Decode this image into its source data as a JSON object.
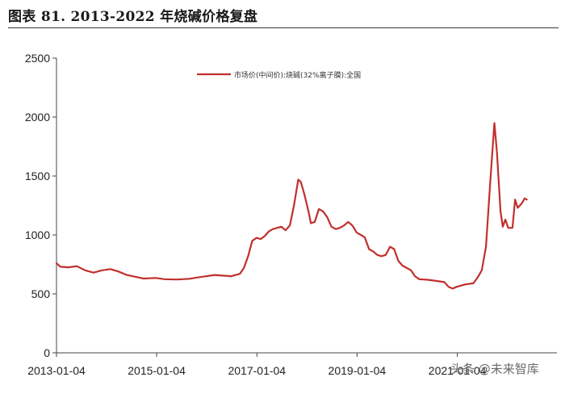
{
  "figure": {
    "title": "图表 81. 2013-2022 年烧碱价格复盘"
  },
  "watermark": {
    "source": "头条 @未来智库"
  },
  "chart_data": {
    "type": "line",
    "title": "",
    "xlabel": "",
    "ylabel": "",
    "xlim": [
      "2013-01-04",
      "2022-12-31"
    ],
    "ylim": [
      0,
      2500
    ],
    "yticks": [
      0,
      500,
      1000,
      1500,
      2000,
      2500
    ],
    "xticks": [
      "2013-01-04",
      "2015-01-04",
      "2017-01-04",
      "2019-01-04",
      "2021-01-04"
    ],
    "grid": false,
    "legend_position": "top-center",
    "series": [
      {
        "name": "市场价(中间价):烧碱(32%离子膜):全国",
        "color": "#c0302c",
        "points": [
          [
            "2013-01-04",
            760
          ],
          [
            "2013-02-01",
            730
          ],
          [
            "2013-04-01",
            725
          ],
          [
            "2013-06-01",
            735
          ],
          [
            "2013-08-01",
            700
          ],
          [
            "2013-10-01",
            680
          ],
          [
            "2013-12-01",
            700
          ],
          [
            "2014-02-01",
            710
          ],
          [
            "2014-04-01",
            690
          ],
          [
            "2014-06-01",
            660
          ],
          [
            "2014-08-01",
            645
          ],
          [
            "2014-10-01",
            630
          ],
          [
            "2015-01-01",
            635
          ],
          [
            "2015-03-01",
            625
          ],
          [
            "2015-06-01",
            622
          ],
          [
            "2015-09-01",
            628
          ],
          [
            "2015-11-01",
            640
          ],
          [
            "2016-01-01",
            650
          ],
          [
            "2016-03-01",
            660
          ],
          [
            "2016-05-01",
            655
          ],
          [
            "2016-07-01",
            650
          ],
          [
            "2016-09-01",
            670
          ],
          [
            "2016-10-01",
            720
          ],
          [
            "2016-11-01",
            820
          ],
          [
            "2016-12-01",
            950
          ],
          [
            "2017-01-01",
            975
          ],
          [
            "2017-02-01",
            965
          ],
          [
            "2017-03-01",
            990
          ],
          [
            "2017-04-01",
            1030
          ],
          [
            "2017-05-01",
            1050
          ],
          [
            "2017-06-01",
            1060
          ],
          [
            "2017-07-01",
            1070
          ],
          [
            "2017-08-01",
            1040
          ],
          [
            "2017-09-01",
            1080
          ],
          [
            "2017-10-01",
            1250
          ],
          [
            "2017-11-01",
            1470
          ],
          [
            "2017-11-20",
            1450
          ],
          [
            "2017-12-15",
            1350
          ],
          [
            "2018-01-15",
            1200
          ],
          [
            "2018-02-01",
            1100
          ],
          [
            "2018-03-01",
            1110
          ],
          [
            "2018-04-01",
            1220
          ],
          [
            "2018-05-01",
            1200
          ],
          [
            "2018-06-01",
            1150
          ],
          [
            "2018-07-01",
            1070
          ],
          [
            "2018-08-01",
            1050
          ],
          [
            "2018-09-01",
            1060
          ],
          [
            "2018-10-01",
            1080
          ],
          [
            "2018-11-01",
            1110
          ],
          [
            "2018-12-01",
            1080
          ],
          [
            "2019-01-01",
            1020
          ],
          [
            "2019-02-01",
            1000
          ],
          [
            "2019-03-01",
            980
          ],
          [
            "2019-04-01",
            880
          ],
          [
            "2019-05-01",
            860
          ],
          [
            "2019-06-01",
            830
          ],
          [
            "2019-07-01",
            820
          ],
          [
            "2019-08-01",
            830
          ],
          [
            "2019-09-01",
            900
          ],
          [
            "2019-10-01",
            880
          ],
          [
            "2019-11-01",
            780
          ],
          [
            "2019-12-01",
            740
          ],
          [
            "2020-01-01",
            720
          ],
          [
            "2020-02-01",
            700
          ],
          [
            "2020-03-01",
            650
          ],
          [
            "2020-04-01",
            625
          ],
          [
            "2020-06-01",
            620
          ],
          [
            "2020-08-01",
            610
          ],
          [
            "2020-10-01",
            600
          ],
          [
            "2020-11-01",
            560
          ],
          [
            "2020-12-01",
            545
          ],
          [
            "2021-01-01",
            560
          ],
          [
            "2021-03-01",
            580
          ],
          [
            "2021-05-01",
            590
          ],
          [
            "2021-06-01",
            640
          ],
          [
            "2021-07-01",
            700
          ],
          [
            "2021-08-01",
            900
          ],
          [
            "2021-09-01",
            1450
          ],
          [
            "2021-10-01",
            1950
          ],
          [
            "2021-10-20",
            1700
          ],
          [
            "2021-11-15",
            1200
          ],
          [
            "2021-12-01",
            1070
          ],
          [
            "2021-12-20",
            1130
          ],
          [
            "2022-01-10",
            1060
          ],
          [
            "2022-02-10",
            1060
          ],
          [
            "2022-03-01",
            1300
          ],
          [
            "2022-03-20",
            1230
          ],
          [
            "2022-04-20",
            1270
          ],
          [
            "2022-05-10",
            1310
          ],
          [
            "2022-05-25",
            1300
          ]
        ]
      }
    ]
  }
}
